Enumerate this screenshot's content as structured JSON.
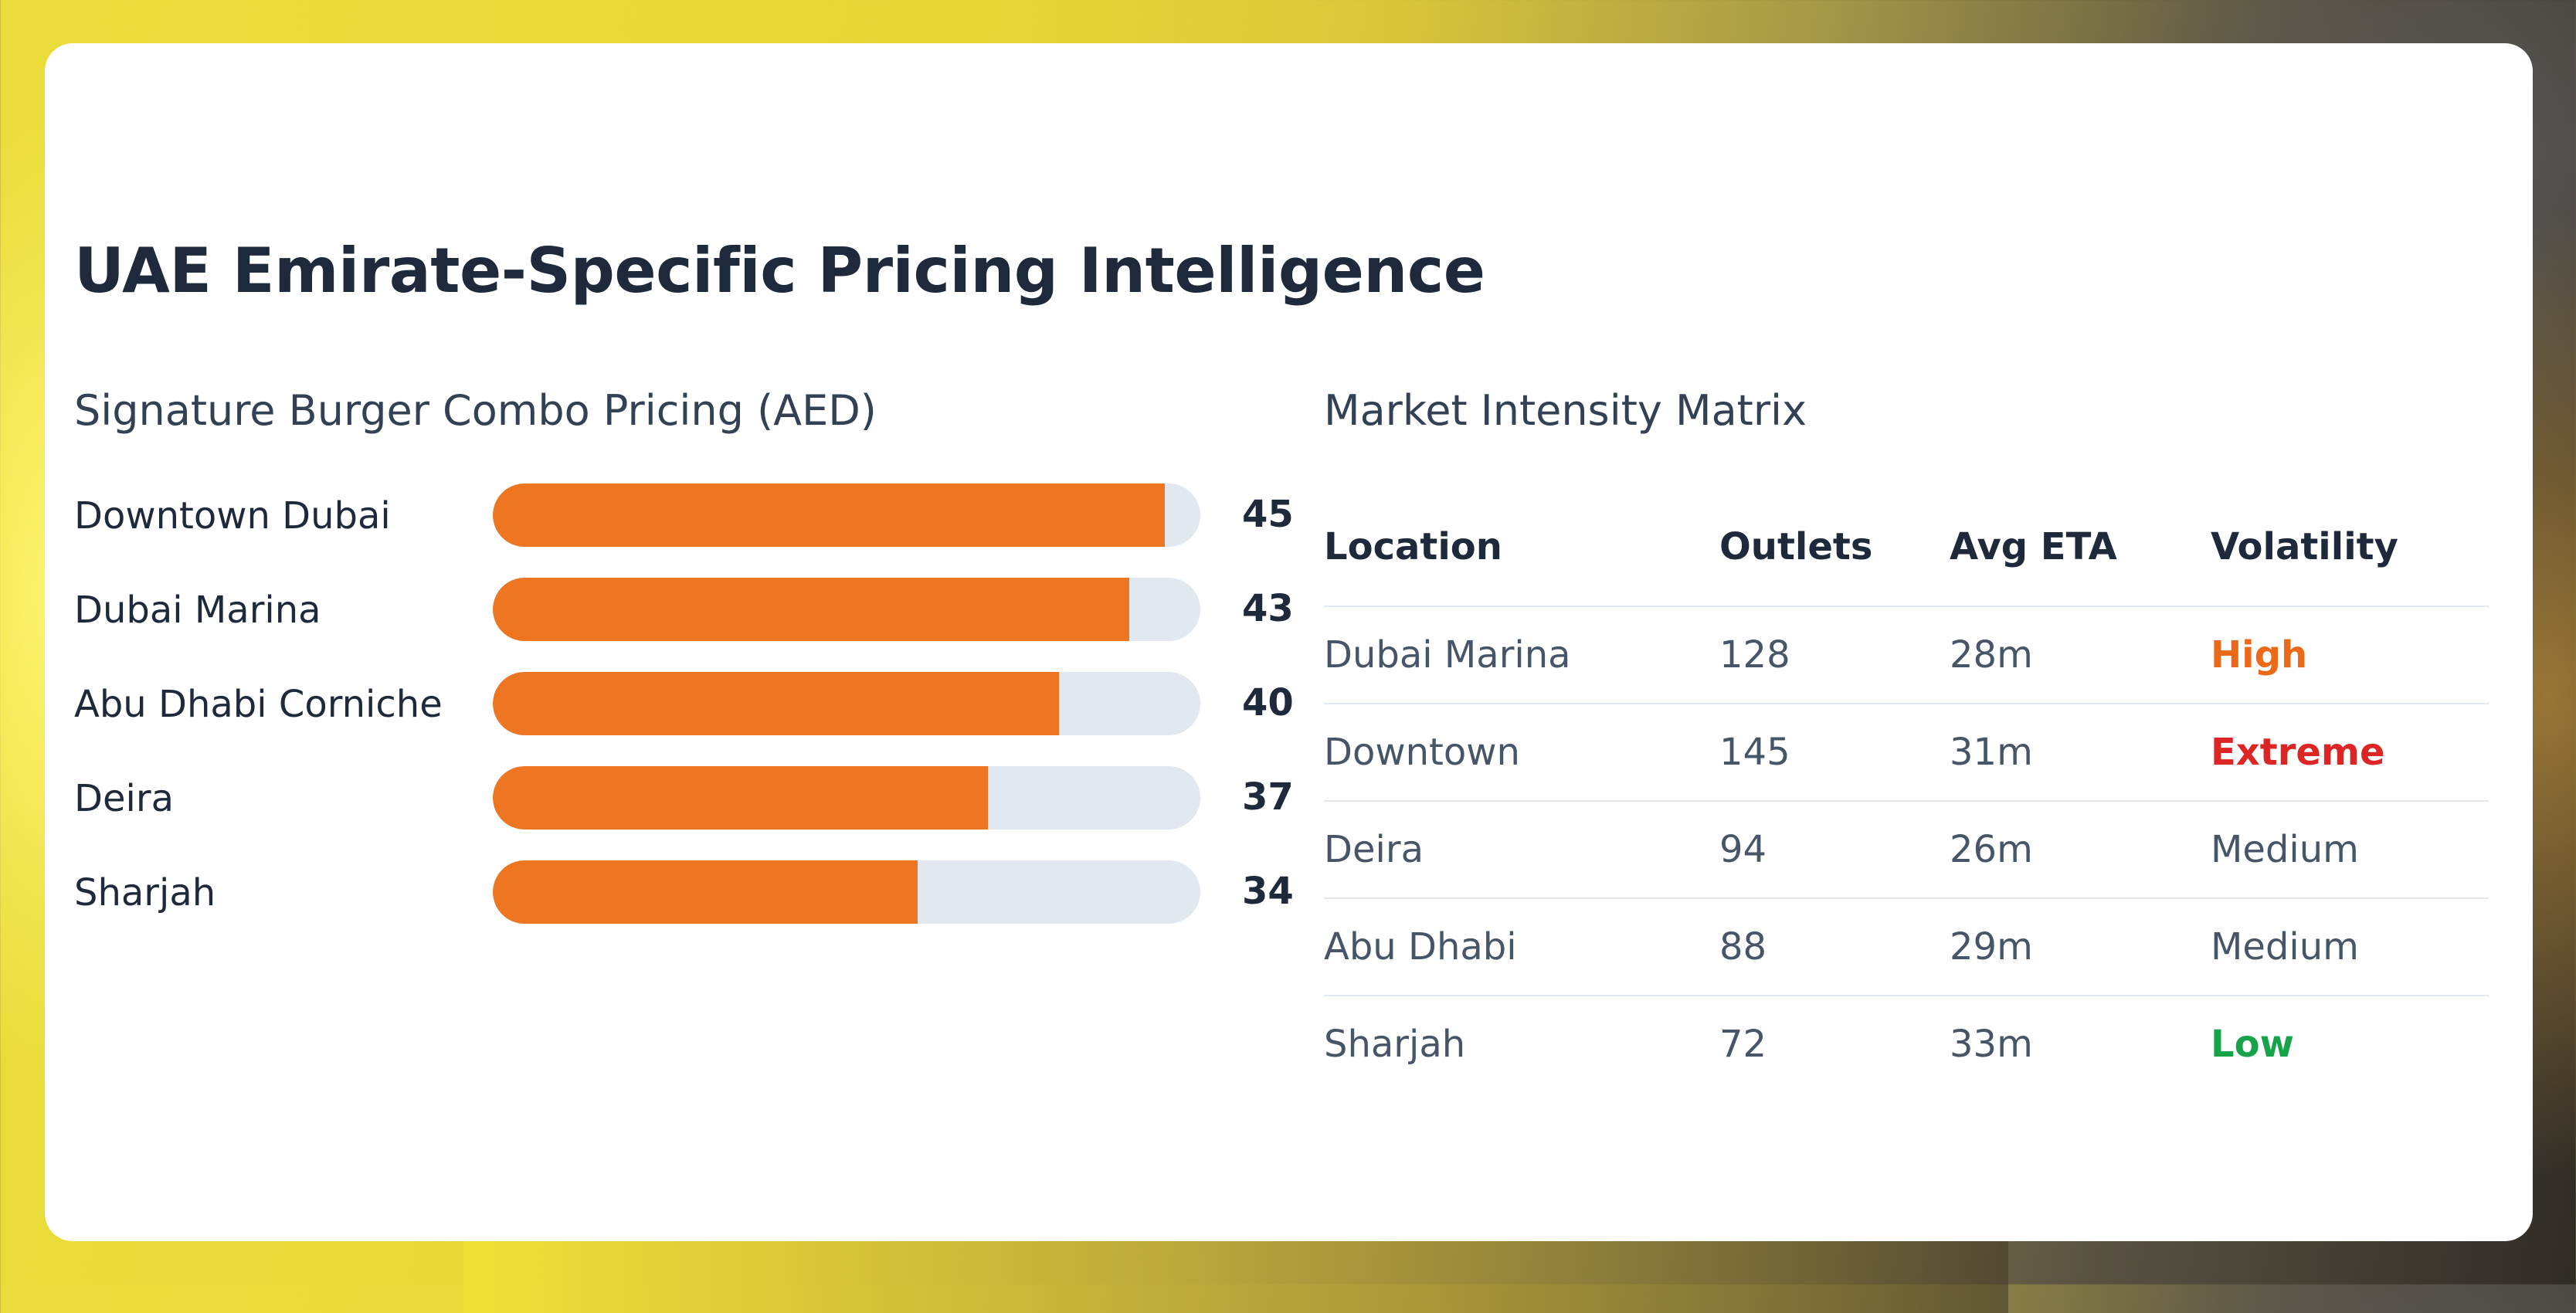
{
  "title": "UAE Emirate-Specific Pricing Intelligence",
  "pricing": {
    "heading": "Signature Burger Combo Pricing (AED)",
    "max_value": 47,
    "items": [
      {
        "label": "Downtown Dubai",
        "value": "45",
        "fraction": 0.95
      },
      {
        "label": "Dubai Marina",
        "value": "43",
        "fraction": 0.9
      },
      {
        "label": "Abu Dhabi Corniche",
        "value": "40",
        "fraction": 0.8
      },
      {
        "label": "Deira",
        "value": "37",
        "fraction": 0.7
      },
      {
        "label": "Sharjah",
        "value": "34",
        "fraction": 0.6
      }
    ],
    "bar_color": "#ee7623",
    "track_color": "#e2e8f0"
  },
  "matrix": {
    "heading": "Market Intensity Matrix",
    "columns": [
      "Location",
      "Outlets",
      "Avg ETA",
      "Volatility"
    ],
    "rows": [
      {
        "location": "Dubai Marina",
        "outlets": "128",
        "eta": "28m",
        "volatility": "High",
        "volatility_color": "#ea6a1a"
      },
      {
        "location": "Downtown",
        "outlets": "145",
        "eta": "31m",
        "volatility": "Extreme",
        "volatility_color": "#dc2626"
      },
      {
        "location": "Deira",
        "outlets": "94",
        "eta": "26m",
        "volatility": "Medium",
        "volatility_color": "#475569"
      },
      {
        "location": "Abu Dhabi",
        "outlets": "88",
        "eta": "29m",
        "volatility": "Medium",
        "volatility_color": "#475569"
      },
      {
        "location": "Sharjah",
        "outlets": "72",
        "eta": "33m",
        "volatility": "Low",
        "volatility_color": "#16a34a"
      }
    ]
  }
}
